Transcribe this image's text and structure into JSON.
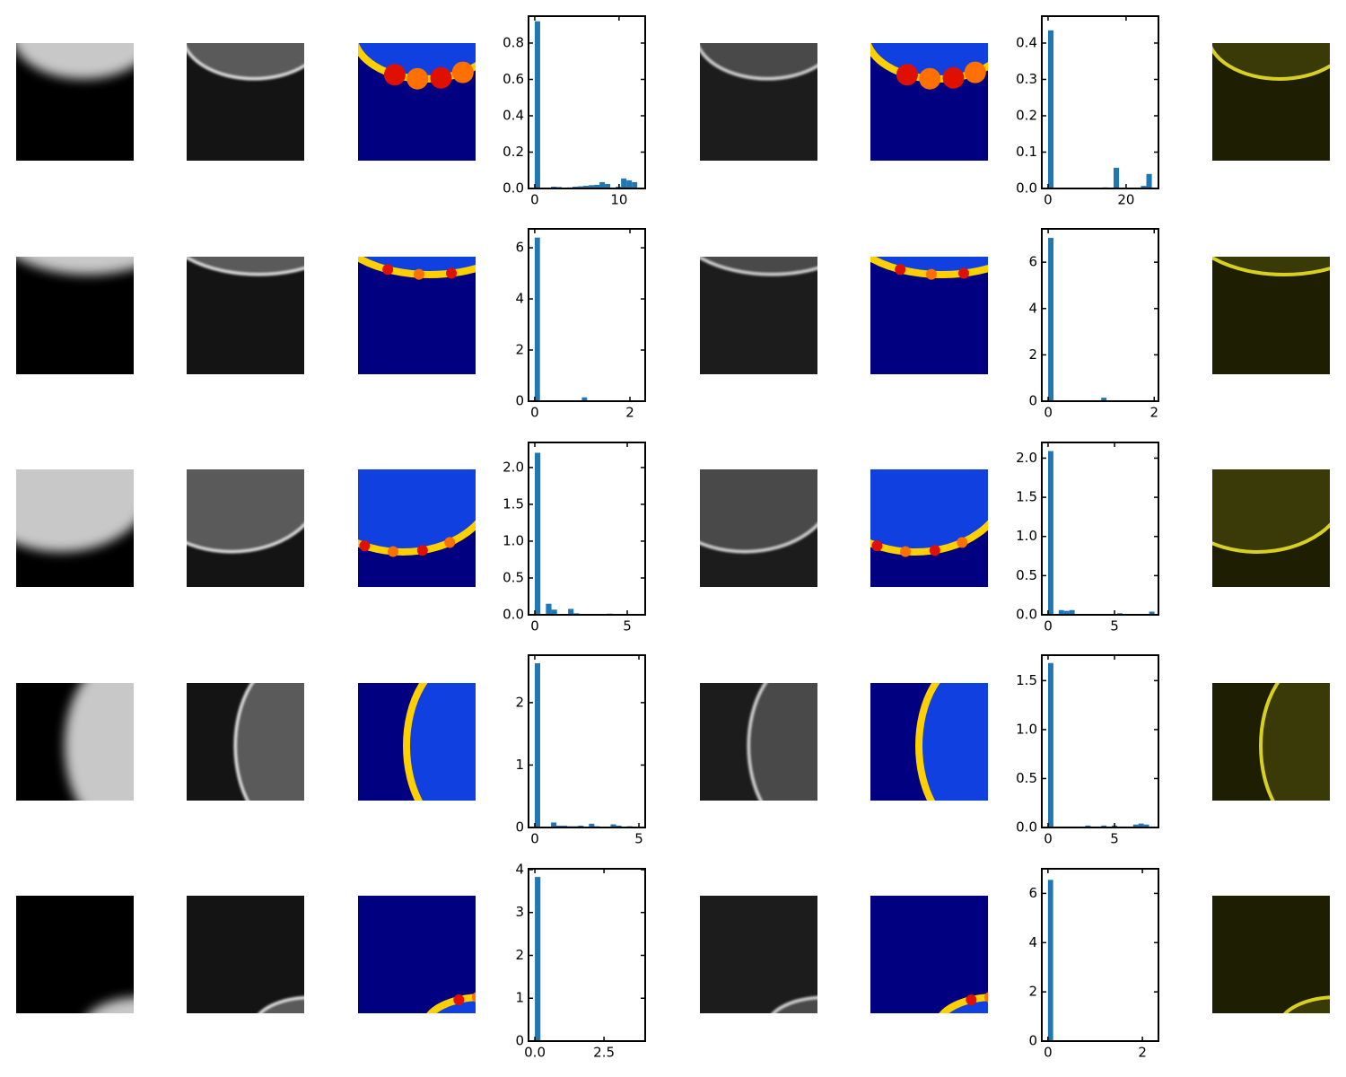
{
  "chart_data": [
    {
      "type": "histogram",
      "color": "#1f77b4",
      "bins": [
        0,
        0.64,
        1.28,
        1.92,
        2.56,
        3.2,
        3.84,
        4.48,
        5.12,
        5.76,
        6.4,
        7.04,
        7.68,
        8.32,
        8.96,
        9.6,
        10.24,
        10.88,
        11.52,
        12.16,
        12.8
      ],
      "values": [
        0.92,
        0,
        0.005,
        0.01,
        0.008,
        0,
        0.006,
        0.01,
        0.012,
        0.015,
        0.018,
        0.02,
        0.035,
        0.025,
        0,
        0.01,
        0.055,
        0.045,
        0.035,
        0
      ],
      "xlim": [
        -0.74,
        13.1
      ],
      "ylim": [
        0,
        0.948
      ],
      "xticks": [
        0,
        10
      ],
      "yticks": [
        {
          "value": 0,
          "label": "0.0"
        },
        0.2,
        0.4,
        0.6,
        0.8
      ]
    },
    {
      "type": "histogram",
      "color": "#1f77b4",
      "bins": [
        0,
        1.4,
        2.8,
        4.2,
        5.6,
        7,
        8.4,
        9.8,
        11.2,
        12.6,
        14,
        15.4,
        16.8,
        18.2,
        19.6,
        21,
        22.4,
        23.8,
        25.2,
        26.6,
        28
      ],
      "values": [
        0.435,
        0,
        0,
        0,
        0,
        0,
        0,
        0,
        0.002,
        0.002,
        0.003,
        0,
        0.057,
        0,
        0,
        0,
        0,
        0.007,
        0.04,
        0
      ],
      "xlim": [
        -1.6,
        28.3
      ],
      "ylim": [
        0,
        0.474
      ],
      "xticks": [
        0,
        20
      ],
      "yticks": [
        {
          "value": 0,
          "label": "0.0"
        },
        0.1,
        0.2,
        0.3,
        0.4
      ]
    },
    {
      "type": "histogram",
      "color": "#1f77b4",
      "bins": [
        0,
        0.11,
        0.22,
        0.33,
        0.44,
        0.55,
        0.66,
        0.77,
        0.88,
        0.99,
        1.1,
        1.21,
        1.32,
        1.43,
        1.54,
        1.65,
        1.76,
        1.87,
        1.98,
        2.09,
        2.2
      ],
      "values": [
        6.4,
        0,
        0,
        0,
        0,
        0,
        0,
        0,
        0,
        0.15,
        0,
        0,
        0,
        0,
        0,
        0,
        0,
        0,
        0,
        0
      ],
      "xlim": [
        -0.13,
        2.32
      ],
      "ylim": [
        0,
        6.74
      ],
      "xticks": [
        0,
        2
      ],
      "yticks": [
        0,
        2,
        4,
        6
      ]
    },
    {
      "type": "histogram",
      "color": "#1f77b4",
      "bins": [
        0,
        0.1,
        0.2,
        0.3,
        0.4,
        0.5,
        0.6,
        0.7,
        0.8,
        0.9,
        1.0,
        1.1,
        1.2,
        1.3,
        1.4,
        1.5,
        1.6,
        1.7,
        1.8,
        1.9,
        2.0
      ],
      "values": [
        7.05,
        0,
        0,
        0,
        0,
        0,
        0,
        0,
        0,
        0,
        0.15,
        0,
        0,
        0,
        0,
        0,
        0,
        0,
        0,
        0
      ],
      "xlim": [
        -0.12,
        2.08
      ],
      "ylim": [
        0,
        7.44
      ],
      "xticks": [
        0,
        2
      ],
      "yticks": [
        0,
        2,
        4,
        6
      ]
    },
    {
      "type": "histogram",
      "color": "#1f77b4",
      "bins": [
        0,
        0.3,
        0.6,
        0.9,
        1.2,
        1.5,
        1.8,
        2.1,
        2.4,
        2.7,
        3.0,
        3.3,
        3.6,
        3.9,
        4.2,
        4.5,
        4.8,
        5.1,
        5.4,
        5.7,
        6.0
      ],
      "values": [
        2.2,
        0,
        0.15,
        0.07,
        0,
        0,
        0.08,
        0.02,
        0,
        0.01,
        0,
        0,
        0.01,
        0.015,
        0,
        0,
        0,
        0,
        0,
        0
      ],
      "xlim": [
        -0.34,
        5.97
      ],
      "ylim": [
        0,
        2.34
      ],
      "xticks": [
        0,
        5
      ],
      "yticks": [
        {
          "value": 0,
          "label": "0.0"
        },
        0.5,
        {
          "value": 1,
          "label": "1.0"
        },
        1.5,
        {
          "value": 2,
          "label": "2.0"
        }
      ]
    },
    {
      "type": "histogram",
      "color": "#1f77b4",
      "bins": [
        0,
        0.4,
        0.8,
        1.2,
        1.6,
        2.0,
        2.4,
        2.8,
        3.2,
        3.6,
        4.0,
        4.4,
        4.8,
        5.2,
        5.6,
        6.0,
        6.4,
        6.8,
        7.2,
        7.6,
        8.0
      ],
      "values": [
        2.09,
        0,
        0.06,
        0.05,
        0.06,
        0,
        0,
        0,
        0,
        0,
        0,
        0,
        0.01,
        0.02,
        0,
        0,
        0,
        0,
        0,
        0.04
      ],
      "xlim": [
        -0.47,
        8.3
      ],
      "ylim": [
        0,
        2.2
      ],
      "xticks": [
        0,
        5
      ],
      "yticks": [
        {
          "value": 0,
          "label": "0.0"
        },
        0.5,
        {
          "value": 1,
          "label": "1.0"
        },
        1.5,
        {
          "value": 2,
          "label": "2.0"
        }
      ]
    },
    {
      "type": "histogram",
      "color": "#1f77b4",
      "bins": [
        0,
        0.26,
        0.52,
        0.78,
        1.04,
        1.3,
        1.56,
        1.82,
        2.08,
        2.34,
        2.6,
        2.86,
        3.12,
        3.38,
        3.64,
        3.9,
        4.16,
        4.42,
        4.68,
        4.94,
        5.2
      ],
      "values": [
        2.63,
        0,
        0,
        0.08,
        0.03,
        0.03,
        0.02,
        0.02,
        0.03,
        0,
        0.06,
        0.02,
        0,
        0,
        0.05,
        0.03,
        0,
        0.02,
        0,
        0.01
      ],
      "xlim": [
        -0.3,
        5.3
      ],
      "ylim": [
        0,
        2.76
      ],
      "xticks": [
        0,
        5
      ],
      "yticks": [
        0,
        1,
        2
      ]
    },
    {
      "type": "histogram",
      "color": "#1f77b4",
      "bins": [
        0,
        0.4,
        0.8,
        1.2,
        1.6,
        2.0,
        2.4,
        2.8,
        3.2,
        3.6,
        4.0,
        4.4,
        4.8,
        5.2,
        5.6,
        6.0,
        6.4,
        6.8,
        7.2,
        7.6,
        8.0
      ],
      "values": [
        1.68,
        0.01,
        0.01,
        0.01,
        0.01,
        0.01,
        0.01,
        0.02,
        0.01,
        0.01,
        0.02,
        0.01,
        0.02,
        0.01,
        0.01,
        0.01,
        0.03,
        0.04,
        0.03,
        0.01
      ],
      "xlim": [
        -0.47,
        8.3
      ],
      "ylim": [
        0,
        1.76
      ],
      "xticks": [
        0,
        5
      ],
      "yticks": [
        {
          "value": 0,
          "label": "0.0"
        },
        0.5,
        {
          "value": 1,
          "label": "1.0"
        },
        1.5
      ]
    },
    {
      "type": "histogram",
      "color": "#1f77b4",
      "bins": [
        0,
        0.2,
        0.4,
        0.6,
        0.8,
        1.0,
        1.2,
        1.4,
        1.6,
        1.8,
        2.0,
        2.2,
        2.4,
        2.6,
        2.8,
        3.0,
        3.2,
        3.4,
        3.6,
        3.8,
        4.0
      ],
      "values": [
        3.83,
        0,
        0,
        0,
        0,
        0,
        0,
        0,
        0,
        0,
        0,
        0,
        0,
        0,
        0,
        0,
        0,
        0,
        0,
        0
      ],
      "xlim": [
        -0.23,
        3.99
      ],
      "ylim": [
        0,
        4.02
      ],
      "xticks": [
        {
          "value": 0,
          "label": "0.0"
        },
        2.5
      ],
      "yticks": [
        0,
        1,
        2,
        3,
        4
      ]
    },
    {
      "type": "histogram",
      "color": "#1f77b4",
      "bins": [
        0,
        0.11,
        0.22,
        0.33,
        0.44,
        0.55,
        0.66,
        0.77,
        0.88,
        0.99,
        1.1,
        1.21,
        1.32,
        1.43,
        1.54,
        1.65,
        1.76,
        1.87,
        1.98,
        2.09,
        2.2
      ],
      "values": [
        6.55,
        0,
        0,
        0,
        0,
        0,
        0,
        0,
        0,
        0,
        0,
        0,
        0,
        0,
        0,
        0,
        0,
        0,
        0,
        0
      ],
      "xlim": [
        -0.13,
        2.34
      ],
      "ylim": [
        0,
        7.0
      ],
      "xticks": [
        0,
        2
      ],
      "yticks": [
        0,
        2,
        4,
        6
      ]
    }
  ]
}
